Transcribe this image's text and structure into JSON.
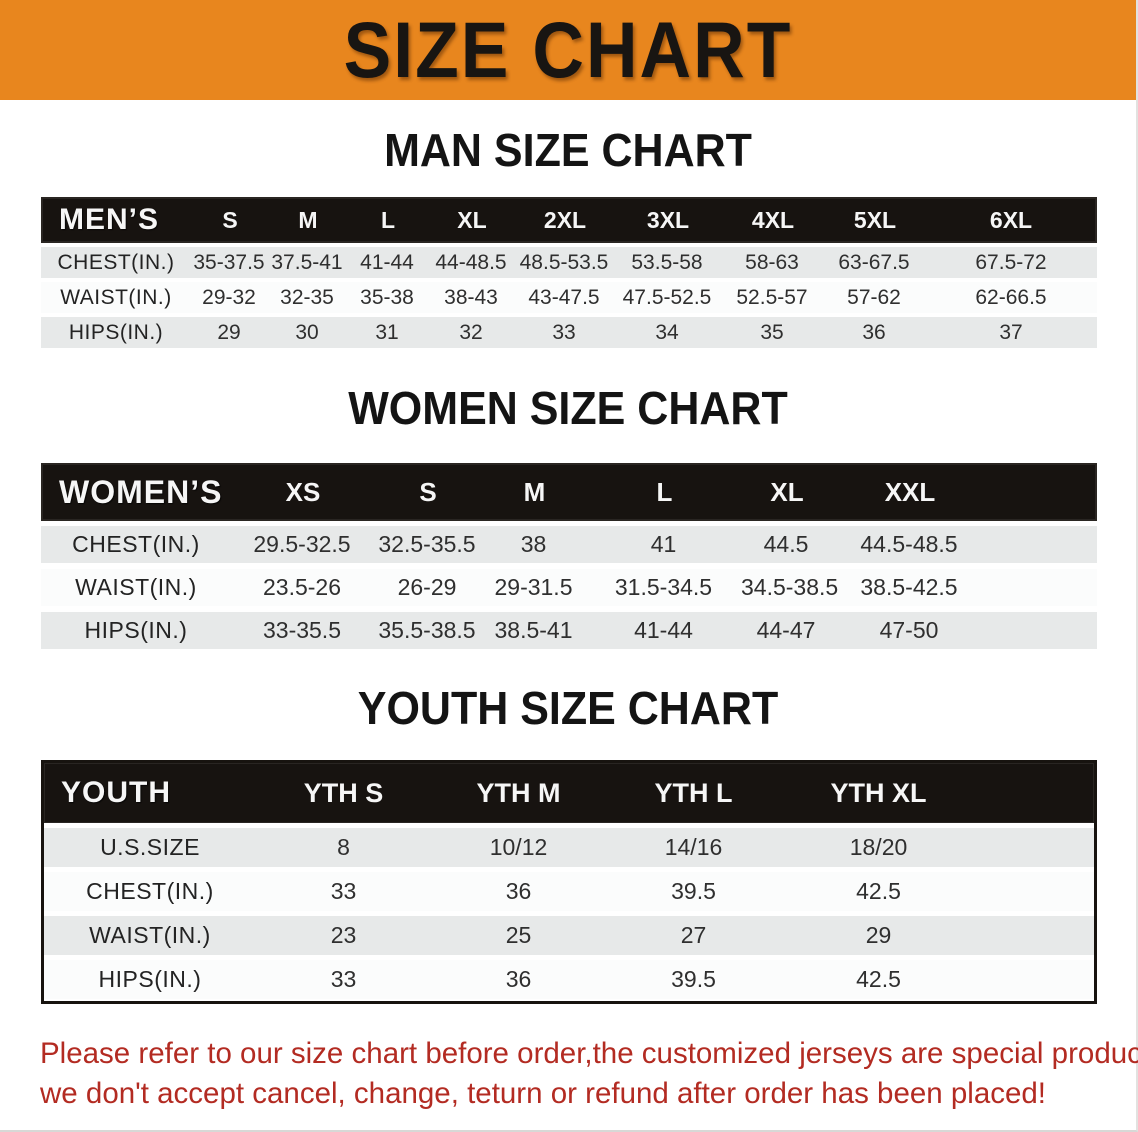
{
  "banner": {
    "title": "SIZE CHART",
    "bg_color": "#e8861e",
    "text_color": "#181512"
  },
  "men": {
    "heading": "MAN SIZE CHART",
    "header": [
      "MEN’S",
      "S",
      "M",
      "L",
      "XL",
      "2XL",
      "3XL",
      "4XL",
      "5XL",
      "6XL"
    ],
    "rows": [
      [
        "CHEST(IN.)",
        "35-37.5",
        "37.5-41",
        "41-44",
        "44-48.5",
        "48.5-53.5",
        "53.5-58",
        "58-63",
        "63-67.5",
        "67.5-72"
      ],
      [
        "WAIST(IN.)",
        "29-32",
        "32-35",
        "35-38",
        "38-43",
        "43-47.5",
        "47.5-52.5",
        "52.5-57",
        "57-62",
        "62-66.5"
      ],
      [
        "HIPS(IN.)",
        "29",
        "30",
        "31",
        "32",
        "33",
        "34",
        "35",
        "36",
        "37"
      ]
    ]
  },
  "women": {
    "heading": "WOMEN SIZE CHART",
    "header": [
      "WOMEN’S",
      "XS",
      "S",
      "M",
      "L",
      "XL",
      "XXL"
    ],
    "rows": [
      [
        "CHEST(IN.)",
        "29.5-32.5",
        "32.5-35.5",
        "38",
        "41",
        "44.5",
        "44.5-48.5"
      ],
      [
        "WAIST(IN.)",
        "23.5-26",
        "26-29",
        "29-31.5",
        "31.5-34.5",
        "34.5-38.5",
        "38.5-42.5"
      ],
      [
        "HIPS(IN.)",
        "33-35.5",
        "35.5-38.5",
        "38.5-41",
        "41-44",
        "44-47",
        "47-50"
      ]
    ]
  },
  "youth": {
    "heading": "YOUTH SIZE CHART",
    "header": [
      "YOUTH",
      "YTH S",
      "YTH M",
      "YTH L",
      "YTH XL"
    ],
    "rows": [
      [
        "U.S.SIZE",
        "8",
        "10/12",
        "14/16",
        "18/20"
      ],
      [
        "CHEST(IN.)",
        "33",
        "36",
        "39.5",
        "42.5"
      ],
      [
        "WAIST(IN.)",
        "23",
        "25",
        "27",
        "29"
      ],
      [
        "HIPS(IN.)",
        "33",
        "36",
        "39.5",
        "42.5"
      ]
    ]
  },
  "footer": {
    "line1": "Please refer to our size chart before order,the customized jerseys are special products,",
    "line2": "we don't accept cancel, change, teturn or refund after order has been placed!",
    "text_color": "#b32b22"
  }
}
